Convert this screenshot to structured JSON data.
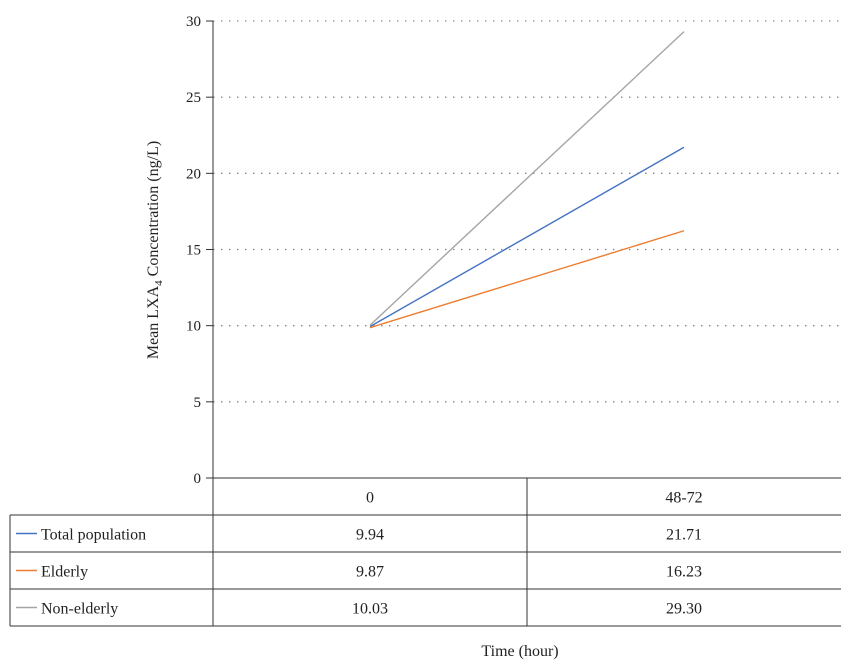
{
  "chart_data": {
    "type": "line",
    "categories": [
      "0",
      "48-72"
    ],
    "series": [
      {
        "name": "Total population",
        "values": [
          9.94,
          21.71
        ],
        "value_labels": [
          "9.94",
          "21.71"
        ],
        "color": "#4472c4"
      },
      {
        "name": "Elderly",
        "values": [
          9.87,
          16.23
        ],
        "value_labels": [
          "9.87",
          "16.23"
        ],
        "color": "#ed7d31"
      },
      {
        "name": "Non-elderly",
        "values": [
          10.03,
          29.3
        ],
        "value_labels": [
          "10.03",
          "29.30"
        ],
        "color": "#a5a5a5"
      }
    ],
    "ylabel_main": "Mean LXA",
    "ylabel_sub": "4",
    "ylabel_rest": " Concentration (ng/L)",
    "xlabel": "Time (hour)",
    "ylim": [
      0,
      30
    ],
    "yticks": [
      0,
      5,
      10,
      15,
      20,
      25,
      30
    ],
    "grid": "horizontal-dotted",
    "legend": "data-table"
  }
}
